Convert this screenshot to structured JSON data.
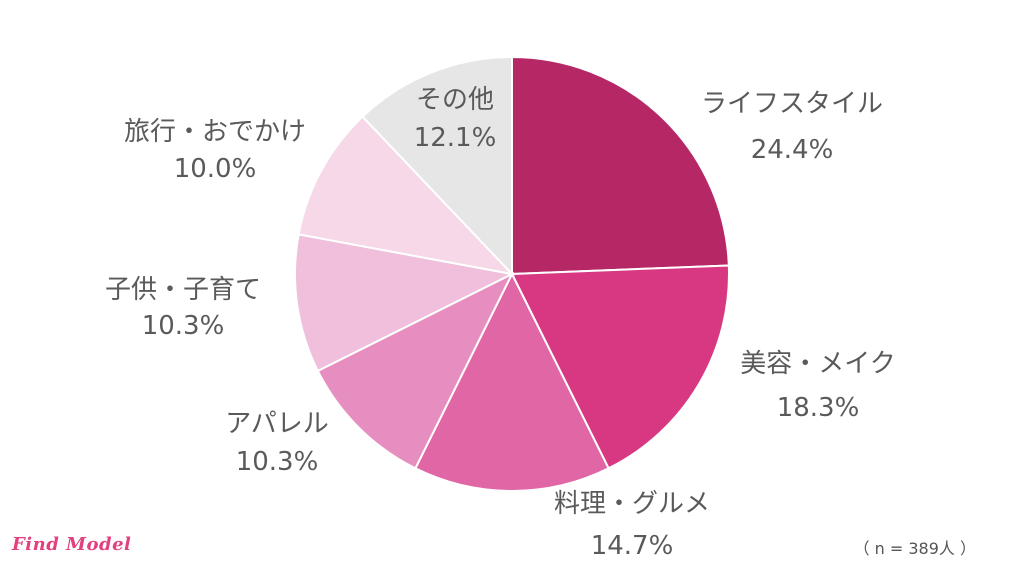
{
  "chart_data": {
    "type": "pie",
    "start_angle_deg": 0,
    "direction": "clockwise",
    "slices": [
      {
        "label": "ライフスタイル",
        "value": 24.4,
        "display": "24.4%",
        "color": "#b52865"
      },
      {
        "label": "美容・メイク",
        "value": 18.3,
        "display": "18.3%",
        "color": "#d83782"
      },
      {
        "label": "料理・グルメ",
        "value": 14.7,
        "display": "14.7%",
        "color": "#e066a5"
      },
      {
        "label": "アパレル",
        "value": 10.3,
        "display": "10.3%",
        "color": "#e78ec0"
      },
      {
        "label": "子供・子育て",
        "value": 10.3,
        "display": "10.3%",
        "color": "#efbfdb"
      },
      {
        "label": "旅行・おでかけ",
        "value": 10.0,
        "display": "10.0%",
        "color": "#f6d8e8"
      },
      {
        "label": "その他",
        "value": 12.1,
        "display": "12.1%",
        "color": "#e6e6e6"
      }
    ]
  },
  "sample_note": "（ n = 389人 ）",
  "logo_text": "Find Model",
  "colors": {
    "label_text": "#5a5a5a",
    "logo": "#e2407f"
  }
}
